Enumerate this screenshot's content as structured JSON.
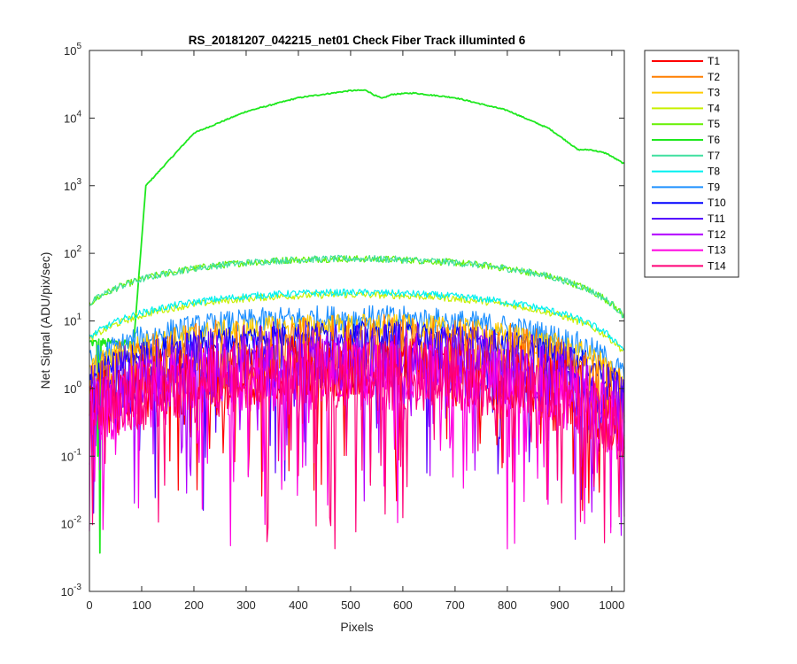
{
  "chart_data": {
    "type": "line",
    "title": "RS_20181207_042215_net01    Check Fiber     Track illuminted 6",
    "xlabel": "Pixels",
    "ylabel": "Net Signal (ADU/pix/sec)",
    "xlim": [
      0,
      1024
    ],
    "ylim": [
      0.001,
      100000
    ],
    "yscale": "log",
    "grid": false,
    "legend_position": "outside-top-right",
    "x_ticks": [
      "0",
      "100",
      "200",
      "300",
      "400",
      "500",
      "600",
      "700",
      "800",
      "900",
      "1000"
    ],
    "y_ticks": [
      {
        "base": "10",
        "exp": "-3"
      },
      {
        "base": "10",
        "exp": "-2"
      },
      {
        "base": "10",
        "exp": "-1"
      },
      {
        "base": "10",
        "exp": "0"
      },
      {
        "base": "10",
        "exp": "1"
      },
      {
        "base": "10",
        "exp": "2"
      },
      {
        "base": "10",
        "exp": "3"
      },
      {
        "base": "10",
        "exp": "4"
      },
      {
        "base": "10",
        "exp": "5"
      }
    ],
    "series": [
      {
        "name": "T1",
        "color": "#ff0000",
        "peak": 2.5
      },
      {
        "name": "T2",
        "color": "#ff7f00",
        "peak": 5
      },
      {
        "name": "T3",
        "color": "#ffcc00",
        "peak": 9
      },
      {
        "name": "T4",
        "color": "#c8f000",
        "peak": 25
      },
      {
        "name": "T5",
        "color": "#66f000",
        "peak": 85
      },
      {
        "name": "T6",
        "color": "#1ee81e",
        "peak": 26000
      },
      {
        "name": "T7",
        "color": "#40e0a0",
        "peak": 85
      },
      {
        "name": "T8",
        "color": "#00f0f0",
        "peak": 27
      },
      {
        "name": "T9",
        "color": "#1e90ff",
        "peak": 12
      },
      {
        "name": "T10",
        "color": "#0000ff",
        "peak": 7
      },
      {
        "name": "T11",
        "color": "#5500ff",
        "peak": 4
      },
      {
        "name": "T12",
        "color": "#b000ff",
        "peak": 3
      },
      {
        "name": "T13",
        "color": "#ff00e0",
        "peak": 2
      },
      {
        "name": "T14",
        "color": "#ff0077",
        "peak": 2
      }
    ]
  }
}
